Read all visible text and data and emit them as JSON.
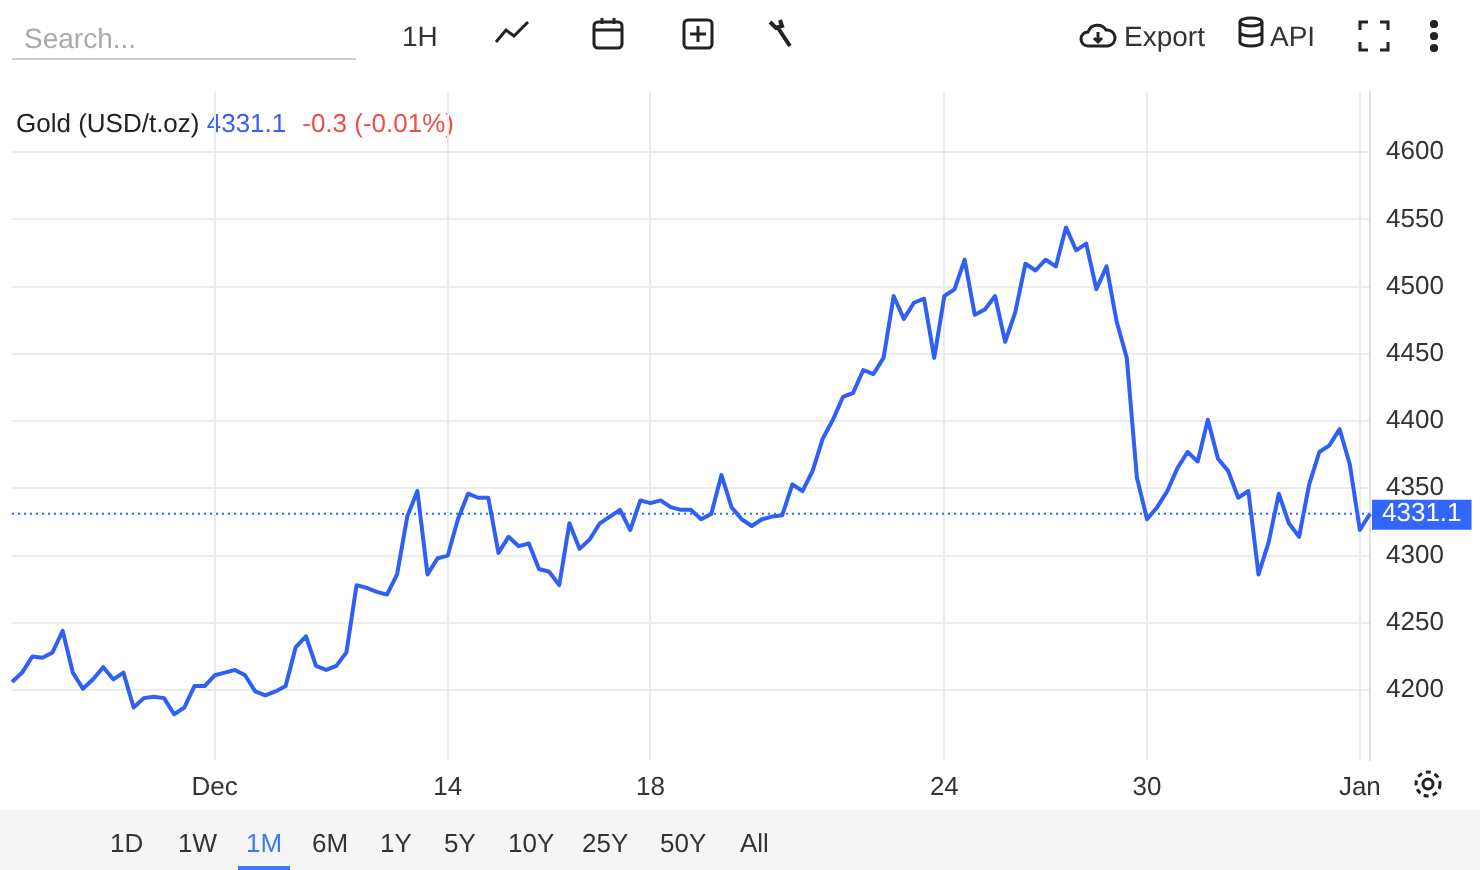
{
  "chart_data": {
    "type": "line",
    "title": "Gold (USD/t.oz)",
    "categories": [
      null,
      null,
      null,
      null,
      null,
      null,
      null,
      null,
      null,
      null,
      null,
      null,
      null,
      null,
      null,
      null,
      null,
      null,
      null,
      null,
      "Dec",
      null,
      null,
      null,
      null,
      null,
      null,
      null,
      null,
      null,
      null,
      null,
      null,
      null,
      null,
      null,
      null,
      null,
      null,
      null,
      null,
      null,
      null,
      "14",
      null,
      null,
      null,
      null,
      null,
      null,
      null,
      null,
      null,
      null,
      null,
      null,
      null,
      null,
      null,
      null,
      null,
      null,
      null,
      "18",
      null,
      null,
      null,
      null,
      null,
      null,
      null,
      null,
      null,
      null,
      null,
      null,
      null,
      null,
      null,
      null,
      null,
      null,
      null,
      null,
      null,
      null,
      null,
      null,
      null,
      null,
      null,
      null,
      "24",
      null,
      null,
      null,
      null,
      null,
      null,
      null,
      null,
      null,
      null,
      null,
      null,
      null,
      null,
      null,
      null,
      null,
      null,
      null,
      "30",
      null,
      null,
      null,
      null,
      null,
      null,
      null,
      null,
      null,
      null,
      null,
      null,
      null,
      null,
      null,
      null,
      null,
      null,
      null,
      null,
      "Jan",
      null
    ],
    "values": [
      4206,
      4213,
      4225,
      4224,
      4228,
      4244,
      4213,
      4201,
      4208,
      4217,
      4208,
      4213,
      4187,
      4194,
      4195,
      4194,
      4182,
      4187,
      4203,
      4203,
      4211,
      4213,
      4215,
      4211,
      4199,
      4196,
      4199,
      4203,
      4232,
      4240,
      4218,
      4215,
      4218,
      4228,
      4278,
      4276,
      4273,
      4271,
      4286,
      4329,
      4348,
      4286,
      4298,
      4300,
      4327,
      4346,
      4343,
      4343,
      4302,
      4314,
      4307,
      4309,
      4290,
      4288,
      4278,
      4324,
      4305,
      4312,
      4324,
      4329,
      4334,
      4319,
      4341,
      4339,
      4341,
      4336,
      4334,
      4334,
      4327,
      4331,
      4360,
      4336,
      4327,
      4322,
      4327,
      4329,
      4330,
      4353,
      4348,
      4363,
      4387,
      4401,
      4418,
      4421,
      4438,
      4435,
      4447,
      4493,
      4476,
      4488,
      4491,
      4447,
      4493,
      4498,
      4520,
      4479,
      4483,
      4493,
      4459,
      4481,
      4517,
      4512,
      4520,
      4515,
      4544,
      4527,
      4532,
      4498,
      4515,
      4474,
      4447,
      4358,
      4327,
      4336,
      4348,
      4365,
      4377,
      4370,
      4401,
      4372,
      4363,
      4343,
      4348,
      4286,
      4310,
      4346,
      4324,
      4314,
      4353,
      4377,
      4382,
      4394,
      4368,
      4319,
      4331.1
    ],
    "color": "#2f5ff5",
    "marker": "none",
    "line_style": "solid",
    "grid": true,
    "legend": false,
    "ylim": [
      4148,
      4645
    ],
    "yticks": [
      4200,
      4250,
      4300,
      4350,
      4400,
      4450,
      4500,
      4550,
      4600
    ],
    "ref_lines": [
      {
        "axis": "y",
        "value": 4331.1,
        "label": "4331.1",
        "color": "#3366ff",
        "line_style": "dotted"
      }
    ],
    "annotations": [
      "4331.1",
      "-0.3 (-0.01%)",
      "Search...",
      "1H",
      "Export",
      "API",
      "1D",
      "1W",
      "1M",
      "6M",
      "1Y",
      "5Y",
      "10Y",
      "25Y",
      "50Y",
      "All"
    ]
  }
}
